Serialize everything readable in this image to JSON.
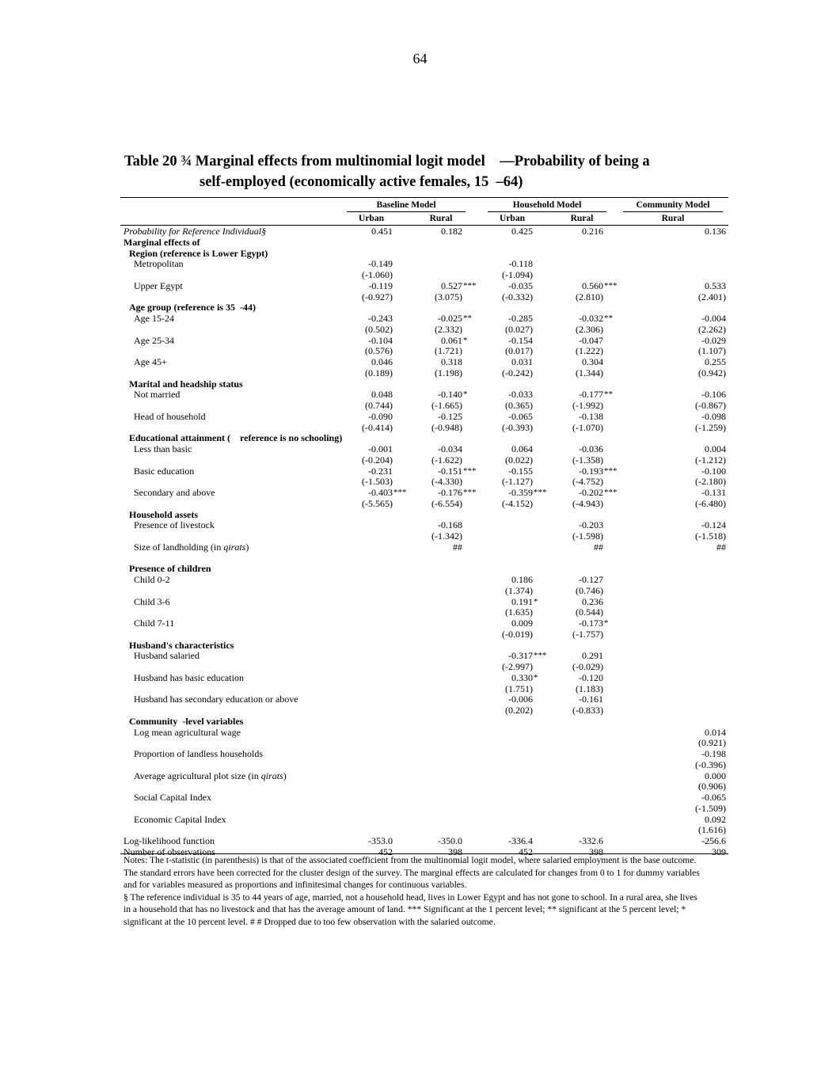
{
  "page_number": "64",
  "title_line1": "Table 20 ¾ Marginal effects from multinomial logit model    —Probability of being a",
  "title_line2": "self-employed (economically active females, 15  –64)",
  "groups": {
    "baseline": "Baseline Model",
    "household": "Household Model",
    "community": "Community Model"
  },
  "subheaders": [
    "Urban",
    "Rural",
    "Urban",
    "Rural",
    "Rural"
  ],
  "rows": [
    {
      "label": "Probability for Reference Individual§",
      "style": "i",
      "level": 0,
      "values": [
        "0.451",
        "0.182",
        "0.425",
        "0.216",
        "0.136"
      ],
      "stars": [
        "",
        "",
        "",
        "",
        ""
      ]
    },
    {
      "label": "Marginal effects of",
      "style": "b",
      "level": 0,
      "values": [
        "",
        "",
        "",
        "",
        ""
      ],
      "stars": [
        "",
        "",
        "",
        "",
        ""
      ]
    },
    {
      "label": "Region (reference is Lower Egypt)",
      "style": "b",
      "level": 1,
      "values": [
        "",
        "",
        "",
        "",
        ""
      ],
      "stars": [
        "",
        "",
        "",
        "",
        ""
      ]
    },
    {
      "label": "Metropolitan",
      "style": "",
      "level": 2,
      "values": [
        "-0.149",
        "",
        "-0.118",
        "",
        ""
      ],
      "stars": [
        "",
        "",
        "",
        "",
        ""
      ]
    },
    {
      "label": "",
      "style": "",
      "level": 2,
      "values": [
        "(-1.060)",
        "",
        "(-1.094)",
        "",
        ""
      ],
      "stars": [
        "",
        "",
        "",
        "",
        ""
      ]
    },
    {
      "label": "Upper Egypt",
      "style": "",
      "level": 2,
      "values": [
        "-0.119",
        "0.527",
        "-0.035",
        "0.560",
        "0.533"
      ],
      "stars": [
        "",
        "***",
        "",
        "***",
        ""
      ]
    },
    {
      "label": "",
      "style": "",
      "level": 2,
      "values": [
        "(-0.927)",
        "(3.075)",
        "(-0.332)",
        "(2.810)",
        "(2.401)"
      ],
      "stars": [
        "",
        "",
        "",
        "",
        ""
      ]
    },
    {
      "label": "Age group (reference is 35  -44)",
      "style": "b",
      "level": 1,
      "values": [
        "",
        "",
        "",
        "",
        ""
      ],
      "stars": [
        "",
        "",
        "",
        "",
        ""
      ]
    },
    {
      "label": "Age 15-24",
      "style": "",
      "level": 2,
      "values": [
        "-0.243",
        "-0.025",
        "-0.285",
        "-0.032",
        "-0.004"
      ],
      "stars": [
        "",
        "**",
        "",
        "**",
        ""
      ]
    },
    {
      "label": "",
      "style": "",
      "level": 2,
      "values": [
        "(0.502)",
        "(2.332)",
        "(0.027)",
        "(2.306)",
        "(2.262)"
      ],
      "stars": [
        "",
        "",
        "",
        "",
        ""
      ]
    },
    {
      "label": "Age 25-34",
      "style": "",
      "level": 2,
      "values": [
        "-0.104",
        "0.061",
        "-0.154",
        "-0.047",
        "-0.029"
      ],
      "stars": [
        "",
        "*",
        "",
        "",
        ""
      ]
    },
    {
      "label": "",
      "style": "",
      "level": 2,
      "values": [
        "(0.576)",
        "(1.721)",
        "(0.017)",
        "(1.222)",
        "(1.107)"
      ],
      "stars": [
        "",
        "",
        "",
        "",
        ""
      ]
    },
    {
      "label": "Age 45+",
      "style": "",
      "level": 2,
      "values": [
        "0.046",
        "0.318",
        "0.031",
        "0.304",
        "0.255"
      ],
      "stars": [
        "",
        "",
        "",
        "",
        ""
      ]
    },
    {
      "label": "",
      "style": "",
      "level": 2,
      "values": [
        "(0.189)",
        "(1.198)",
        "(-0.242)",
        "(1.344)",
        "(0.942)"
      ],
      "stars": [
        "",
        "",
        "",
        "",
        ""
      ]
    },
    {
      "label": "Marital and headship status",
      "style": "b",
      "level": 1,
      "values": [
        "",
        "",
        "",
        "",
        ""
      ],
      "stars": [
        "",
        "",
        "",
        "",
        ""
      ]
    },
    {
      "label": "Not married",
      "style": "",
      "level": 2,
      "values": [
        "0.048",
        "-0.140",
        "-0.033",
        "-0.177",
        "-0.106"
      ],
      "stars": [
        "",
        "*",
        "",
        "**",
        ""
      ]
    },
    {
      "label": "",
      "style": "",
      "level": 2,
      "values": [
        "(0.744)",
        "(-1.665)",
        "(0.365)",
        "(-1.992)",
        "(-0.867)"
      ],
      "stars": [
        "",
        "",
        "",
        "",
        ""
      ]
    },
    {
      "label": "Head of household",
      "style": "",
      "level": 2,
      "values": [
        "-0.090",
        "-0.125",
        "-0.065",
        "-0.138",
        "-0.098"
      ],
      "stars": [
        "",
        "",
        "",
        "",
        ""
      ]
    },
    {
      "label": "",
      "style": "",
      "level": 2,
      "values": [
        "(-0.414)",
        "(-0.948)",
        "(-0.393)",
        "(-1.070)",
        "(-1.259)"
      ],
      "stars": [
        "",
        "",
        "",
        "",
        ""
      ]
    },
    {
      "label": "Educational attainment (    reference is no schooling)",
      "style": "b",
      "level": 1,
      "values": [
        "",
        "",
        "",
        "",
        ""
      ],
      "stars": [
        "",
        "",
        "",
        "",
        ""
      ]
    },
    {
      "label": "Less than basic",
      "style": "",
      "level": 2,
      "values": [
        "-0.001",
        "-0.034",
        "0.064",
        "-0.036",
        "0.004"
      ],
      "stars": [
        "",
        "",
        "",
        "",
        ""
      ]
    },
    {
      "label": "",
      "style": "",
      "level": 2,
      "values": [
        "(-0.204)",
        "(-1.622)",
        "(0.022)",
        "(-1.358)",
        "(-1.212)"
      ],
      "stars": [
        "",
        "",
        "",
        "",
        ""
      ]
    },
    {
      "label": "Basic education",
      "style": "",
      "level": 2,
      "values": [
        "-0.231",
        "-0.151",
        "-0.155",
        "-0.193",
        "-0.100"
      ],
      "stars": [
        "",
        "***",
        "",
        "***",
        ""
      ]
    },
    {
      "label": "",
      "style": "",
      "level": 2,
      "values": [
        "(-1.503)",
        "(-4.330)",
        "(-1.127)",
        "(-4.752)",
        "(-2.180)"
      ],
      "stars": [
        "",
        "",
        "",
        "",
        ""
      ]
    },
    {
      "label": "Secondary and above",
      "style": "",
      "level": 2,
      "values": [
        "-0.403",
        "-0.176",
        "-0.359",
        "-0.202",
        "-0.131"
      ],
      "stars": [
        "***",
        "***",
        "***",
        "***",
        ""
      ]
    },
    {
      "label": "",
      "style": "",
      "level": 2,
      "values": [
        "(-5.565)",
        "(-6.554)",
        "(-4.152)",
        "(-4.943)",
        "(-6.480)"
      ],
      "stars": [
        "",
        "",
        "",
        "",
        ""
      ]
    },
    {
      "label": "Household assets",
      "style": "b",
      "level": 1,
      "values": [
        "",
        "",
        "",
        "",
        ""
      ],
      "stars": [
        "",
        "",
        "",
        "",
        ""
      ]
    },
    {
      "label": "Presence of livestock",
      "style": "",
      "level": 2,
      "values": [
        "",
        "-0.168",
        "",
        "-0.203",
        "-0.124"
      ],
      "stars": [
        "",
        "",
        "",
        "",
        ""
      ]
    },
    {
      "label": "",
      "style": "",
      "level": 2,
      "values": [
        "",
        "(-1.342)",
        "",
        "(-1.598)",
        "(-1.518)"
      ],
      "stars": [
        "",
        "",
        "",
        "",
        ""
      ]
    },
    {
      "label": "Size of landholding (in qirats)",
      "style": "",
      "level": 2,
      "values": [
        "",
        "##",
        "",
        "##",
        "##"
      ],
      "stars": [
        "",
        "",
        "",
        "",
        ""
      ]
    },
    {
      "label": "",
      "style": "",
      "level": 2,
      "values": [
        "",
        "",
        "",
        "",
        ""
      ],
      "stars": [
        "",
        "",
        "",
        "",
        ""
      ]
    },
    {
      "label": "Presence of children",
      "style": "b",
      "level": 1,
      "values": [
        "",
        "",
        "",
        "",
        ""
      ],
      "stars": [
        "",
        "",
        "",
        "",
        ""
      ]
    },
    {
      "label": "Child 0-2",
      "style": "",
      "level": 2,
      "values": [
        "",
        "",
        "0.186",
        "-0.127",
        ""
      ],
      "stars": [
        "",
        "",
        "",
        "",
        ""
      ]
    },
    {
      "label": "",
      "style": "",
      "level": 2,
      "values": [
        "",
        "",
        "(1.374)",
        "(0.746)",
        ""
      ],
      "stars": [
        "",
        "",
        "",
        "",
        ""
      ]
    },
    {
      "label": "Child 3-6",
      "style": "",
      "level": 2,
      "values": [
        "",
        "",
        "0.191",
        "0.236",
        ""
      ],
      "stars": [
        "",
        "",
        "*",
        "",
        ""
      ]
    },
    {
      "label": "",
      "style": "",
      "level": 2,
      "values": [
        "",
        "",
        "(1.635)",
        "(0.544)",
        ""
      ],
      "stars": [
        "",
        "",
        "",
        "",
        ""
      ]
    },
    {
      "label": "Child 7-11",
      "style": "",
      "level": 2,
      "values": [
        "",
        "",
        "0.009",
        "-0.173",
        ""
      ],
      "stars": [
        "",
        "",
        "",
        "*",
        ""
      ]
    },
    {
      "label": "",
      "style": "",
      "level": 2,
      "values": [
        "",
        "",
        "(-0.019)",
        "(-1.757)",
        ""
      ],
      "stars": [
        "",
        "",
        "",
        "",
        ""
      ]
    },
    {
      "label": "Husband's characteristics",
      "style": "b",
      "level": 1,
      "values": [
        "",
        "",
        "",
        "",
        ""
      ],
      "stars": [
        "",
        "",
        "",
        "",
        ""
      ]
    },
    {
      "label": "Husband salaried",
      "style": "",
      "level": 2,
      "values": [
        "",
        "",
        "-0.317",
        "0.291",
        ""
      ],
      "stars": [
        "",
        "",
        "***",
        "",
        ""
      ]
    },
    {
      "label": "",
      "style": "",
      "level": 2,
      "values": [
        "",
        "",
        "(-2.997)",
        "(-0.029)",
        ""
      ],
      "stars": [
        "",
        "",
        "",
        "",
        ""
      ]
    },
    {
      "label": "Husband has basic education",
      "style": "",
      "level": 2,
      "values": [
        "",
        "",
        "0.330",
        "-0.120",
        ""
      ],
      "stars": [
        "",
        "",
        "*",
        "",
        ""
      ]
    },
    {
      "label": "",
      "style": "",
      "level": 2,
      "values": [
        "",
        "",
        "(1.751)",
        "(1.183)",
        ""
      ],
      "stars": [
        "",
        "",
        "",
        "",
        ""
      ]
    },
    {
      "label": "Husband has secondary education or above",
      "style": "",
      "level": 2,
      "values": [
        "",
        "",
        "-0.006",
        "-0.161",
        ""
      ],
      "stars": [
        "",
        "",
        "",
        "",
        ""
      ]
    },
    {
      "label": "",
      "style": "",
      "level": 2,
      "values": [
        "",
        "",
        "(0.202)",
        "(-0.833)",
        ""
      ],
      "stars": [
        "",
        "",
        "",
        "",
        ""
      ]
    },
    {
      "label": "Community  -level variables",
      "style": "b",
      "level": 1,
      "values": [
        "",
        "",
        "",
        "",
        ""
      ],
      "stars": [
        "",
        "",
        "",
        "",
        ""
      ]
    },
    {
      "label": "Log mean agricultural wage",
      "style": "",
      "level": 2,
      "values": [
        "",
        "",
        "",
        "",
        "0.014"
      ],
      "stars": [
        "",
        "",
        "",
        "",
        ""
      ]
    },
    {
      "label": "",
      "style": "",
      "level": 2,
      "values": [
        "",
        "",
        "",
        "",
        "(0.921)"
      ],
      "stars": [
        "",
        "",
        "",
        "",
        ""
      ]
    },
    {
      "label": "Proportion of landless households",
      "style": "",
      "level": 2,
      "values": [
        "",
        "",
        "",
        "",
        "-0.198"
      ],
      "stars": [
        "",
        "",
        "",
        "",
        ""
      ]
    },
    {
      "label": "",
      "style": "",
      "level": 2,
      "values": [
        "",
        "",
        "",
        "",
        "(-0.396)"
      ],
      "stars": [
        "",
        "",
        "",
        "",
        ""
      ]
    },
    {
      "label": "Average agricultural plot size (in qirats)",
      "style": "",
      "level": 2,
      "values": [
        "",
        "",
        "",
        "",
        "0.000"
      ],
      "stars": [
        "",
        "",
        "",
        "",
        ""
      ]
    },
    {
      "label": "",
      "style": "",
      "level": 2,
      "values": [
        "",
        "",
        "",
        "",
        "(0.906)"
      ],
      "stars": [
        "",
        "",
        "",
        "",
        ""
      ]
    },
    {
      "label": "Social Capital Index",
      "style": "",
      "level": 2,
      "values": [
        "",
        "",
        "",
        "",
        "-0.065"
      ],
      "stars": [
        "",
        "",
        "",
        "",
        ""
      ]
    },
    {
      "label": "",
      "style": "",
      "level": 2,
      "values": [
        "",
        "",
        "",
        "",
        "(-1.509)"
      ],
      "stars": [
        "",
        "",
        "",
        "",
        ""
      ]
    },
    {
      "label": "Economic Capital Index",
      "style": "",
      "level": 2,
      "values": [
        "",
        "",
        "",
        "",
        "0.092"
      ],
      "stars": [
        "",
        "",
        "",
        "",
        ""
      ]
    },
    {
      "label": "",
      "style": "",
      "level": 2,
      "values": [
        "",
        "",
        "",
        "",
        "(1.616)"
      ],
      "stars": [
        "",
        "",
        "",
        "",
        ""
      ]
    },
    {
      "label": "Log-likelihood function",
      "style": "",
      "level": 0,
      "values": [
        "-353.0",
        "-350.0",
        "-336.4",
        "-332.6",
        "-256.6"
      ],
      "stars": [
        "",
        "",
        "",
        "",
        ""
      ]
    },
    {
      "label": "Number of observations",
      "style": "",
      "level": 0,
      "values": [
        "452",
        "398",
        "452",
        "398",
        "309"
      ],
      "stars": [
        "",
        "",
        "",
        "",
        ""
      ]
    }
  ],
  "notes": [
    "Notes: The t-statistic (in parenthesis) is that of the associated coefficient from the multinomial logit model, where salaried employment is the base outcome. The standard errors have been corrected for the cluster design of the survey. The marginal effects are calculated for changes from 0 to 1 for dummy variables and for variables measured as proportions and infinitesimal changes for continuous variables.",
    "§ The reference individual is 35 to 44 years of age, married, not a household head, lives in Lower Egypt and has not gone to school. In a rural area, she lives in a household that has no livestock and that has the average amount of land. *** Significant at the 1 percent level; ** significant at the 5 percent level; * significant at the 10 percent level. # # Dropped due to too few observation with the salaried outcome."
  ]
}
